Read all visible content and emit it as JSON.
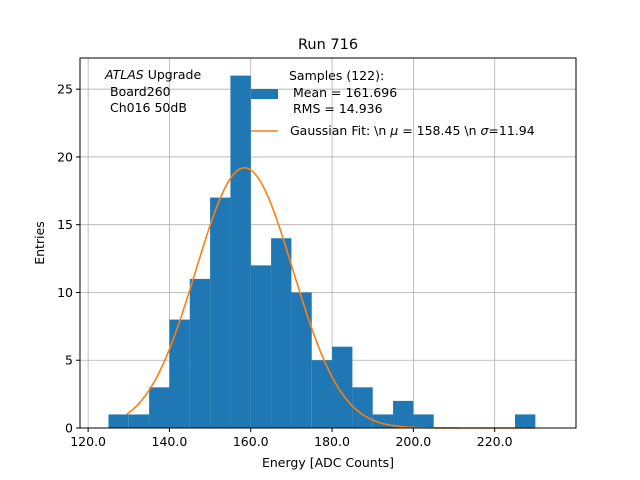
{
  "chart_data": {
    "type": "bar",
    "title": "Run 716",
    "xlabel": "Energy [ADC Counts]",
    "ylabel": "Entries",
    "xlim": [
      118,
      240
    ],
    "ylim": [
      0,
      27.3
    ],
    "grid": true,
    "xticks": [
      120,
      140,
      160,
      180,
      200,
      220
    ],
    "xtick_labels": [
      "120.0",
      "140.0",
      "160.0",
      "180.0",
      "200.0",
      "220.0"
    ],
    "yticks": [
      0,
      5,
      10,
      15,
      20,
      25
    ],
    "ytick_labels": [
      "0",
      "5",
      "10",
      "15",
      "20",
      "25"
    ],
    "bins": [
      {
        "left": 125,
        "right": 130,
        "count": 1
      },
      {
        "left": 130,
        "right": 135,
        "count": 1
      },
      {
        "left": 135,
        "right": 140,
        "count": 3
      },
      {
        "left": 140,
        "right": 145,
        "count": 8
      },
      {
        "left": 145,
        "right": 150,
        "count": 11
      },
      {
        "left": 150,
        "right": 155,
        "count": 17
      },
      {
        "left": 155,
        "right": 160,
        "count": 26
      },
      {
        "left": 160,
        "right": 165,
        "count": 12
      },
      {
        "left": 165,
        "right": 170,
        "count": 14
      },
      {
        "left": 170,
        "right": 175,
        "count": 10
      },
      {
        "left": 175,
        "right": 180,
        "count": 5
      },
      {
        "left": 180,
        "right": 185,
        "count": 6
      },
      {
        "left": 185,
        "right": 190,
        "count": 3
      },
      {
        "left": 190,
        "right": 195,
        "count": 1
      },
      {
        "left": 195,
        "right": 200,
        "count": 2
      },
      {
        "left": 200,
        "right": 205,
        "count": 1
      },
      {
        "left": 205,
        "right": 210,
        "count": 0
      },
      {
        "left": 210,
        "right": 215,
        "count": 0
      },
      {
        "left": 215,
        "right": 220,
        "count": 0
      },
      {
        "left": 220,
        "right": 225,
        "count": 0
      },
      {
        "left": 225,
        "right": 230,
        "count": 1
      }
    ],
    "fit": {
      "mu": 158.45,
      "sigma": 11.94,
      "amplitude": 19.2,
      "x_range": [
        129.5,
        230
      ]
    },
    "colors": {
      "histogram": "#1f77b4",
      "fit": "#ff7f0e",
      "grid": "#b0b0b0"
    },
    "annotation": {
      "atlas_word": "ATLAS",
      "upgrade_word": " Upgrade",
      "line2": "Board260",
      "line3": "Ch016 50dB"
    },
    "legend": {
      "placement": "top-center",
      "hist_line1": "Samples (122):",
      "hist_line2": "Mean = 161.696",
      "hist_line3": "RMS = 14.936",
      "fit_prefix": "Gaussian Fit: \\n ",
      "fit_mu_symbol": "μ",
      "fit_mid": " = 158.45 \\n ",
      "fit_sigma_symbol": "σ",
      "fit_suffix": "=11.94"
    }
  }
}
